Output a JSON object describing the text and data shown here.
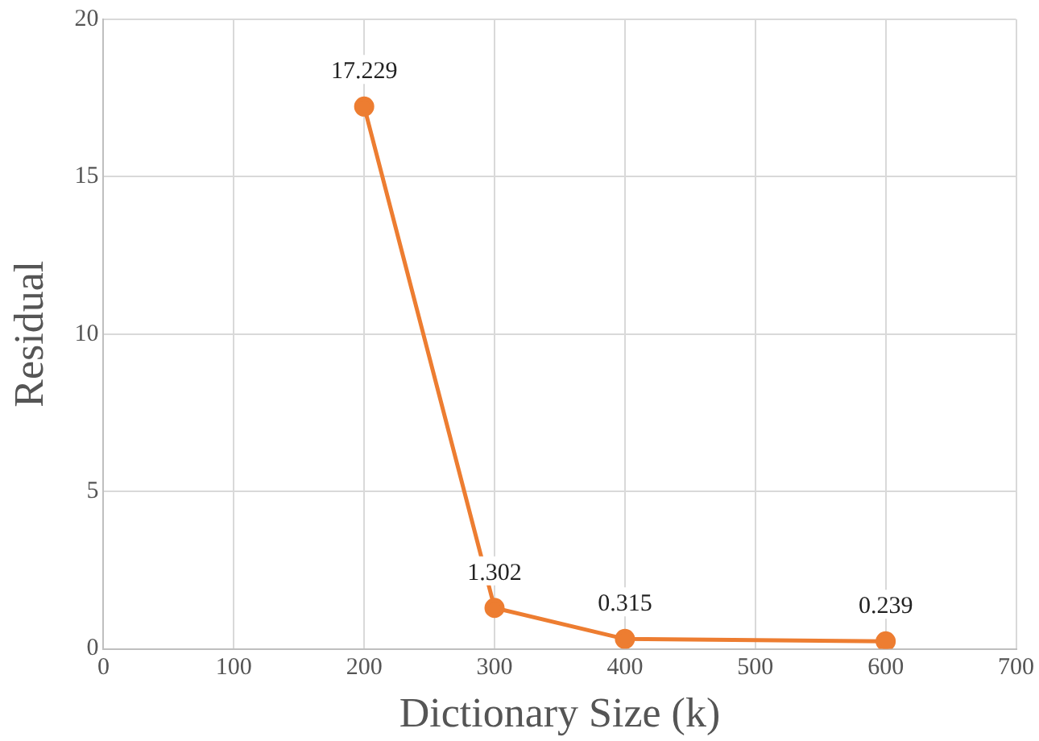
{
  "chart_data": {
    "type": "line",
    "xlabel": "Dictionary Size (k)",
    "ylabel": "Residual",
    "x": [
      200,
      300,
      400,
      600
    ],
    "series": [
      {
        "color": "#ed7d31",
        "values": [
          17.229,
          1.302,
          0.315,
          0.239
        ]
      }
    ],
    "xlim": [
      0,
      700
    ],
    "xticks": [
      0,
      100,
      200,
      300,
      400,
      500,
      600,
      700
    ],
    "ylim": [
      0,
      20
    ],
    "yticks": [
      0,
      5,
      10,
      15,
      20
    ],
    "grid": true,
    "legend": false,
    "marker": "circle",
    "line_style": "solid",
    "data_labels": true
  }
}
